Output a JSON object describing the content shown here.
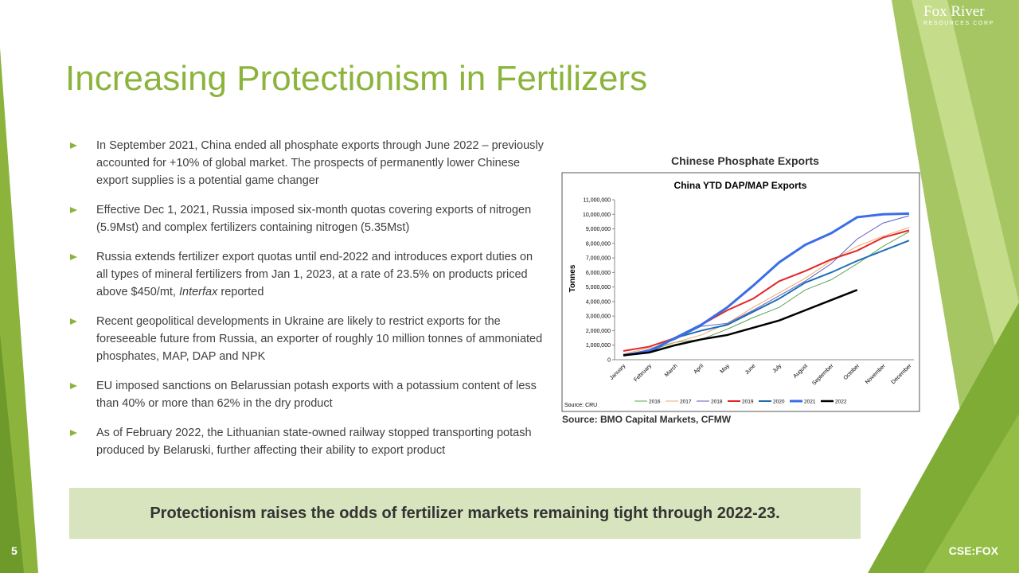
{
  "logo": {
    "name": "Fox River",
    "tagline": "RESOURCES CORP"
  },
  "header": {
    "title": "Increasing Protectionism in Fertilizers"
  },
  "bullets": [
    "In September 2021, China ended all phosphate exports through June 2022 – previously accounted for +10% of global market. The prospects of permanently lower Chinese export supplies is a potential game changer",
    "Effective Dec 1, 2021, Russia imposed six-month quotas covering exports of nitrogen (5.9Mst) and complex fertilizers containing nitrogen (5.35Mst)",
    {
      "parts": [
        "Russia extends fertilizer export quotas until end-2022 and introduces export duties on all types of mineral fertilizers from Jan 1, 2023, at a rate of 23.5% on products priced above $450/mt, ",
        "Interfax",
        " reported"
      ]
    },
    "Recent geopolitical developments in Ukraine are likely to restrict exports for the foreseeable future from Russia, an exporter of roughly 10 million tonnes of ammoniated phosphates, MAP, DAP and NPK",
    "EU imposed sanctions on Belarussian potash exports with a potassium content of less than 40% or more than 62% in the dry product",
    "As of February 2022, the Lithuanian state-owned railway stopped transporting potash produced by Belaruski, further affecting their ability to export product"
  ],
  "chart_caption": "Chinese Phosphate Exports",
  "chart_source": "Source: BMO Capital Markets, CFMW",
  "chart_data": {
    "type": "line",
    "title": "China YTD DAP/MAP Exports",
    "y_label": "Tonnes",
    "source": "Source: CRU",
    "categories": [
      "January",
      "February",
      "March",
      "April",
      "May",
      "June",
      "July",
      "August",
      "September",
      "October",
      "November",
      "December"
    ],
    "ylim": [
      0,
      11000000
    ],
    "yticks": [
      0,
      {
        "value": 1000000,
        "label": "1,000,000"
      },
      {
        "value": 2000000,
        "label": "2,000,000"
      },
      {
        "value": 3000000,
        "label": "3,000,000"
      },
      {
        "value": 4000000,
        "label": "4,000,000"
      },
      {
        "value": 5000000,
        "label": "5,000,000"
      },
      {
        "value": 6000000,
        "label": "6,000,000"
      },
      {
        "value": 7000000,
        "label": "7,000,000"
      },
      {
        "value": 8000000,
        "label": "8,000,000"
      },
      {
        "value": 9000000,
        "label": "9,000,000"
      },
      {
        "value": 10000000,
        "label": "10,000,000"
      },
      {
        "value": 11000000,
        "label": "11,000,000"
      }
    ],
    "legend": "bottom",
    "series": [
      {
        "name": "2016",
        "color": "#5fa35a",
        "width": 1,
        "values": [
          300000,
          600000,
          1200000,
          1400000,
          2100000,
          2900000,
          3600000,
          4800000,
          5500000,
          6600000,
          7800000,
          8800000
        ]
      },
      {
        "name": "2017",
        "color": "#f0a868",
        "width": 1,
        "values": [
          400000,
          800000,
          1200000,
          1700000,
          2500000,
          3600000,
          4600000,
          5600000,
          6800000,
          7800000,
          8500000,
          9100000
        ]
      },
      {
        "name": "2018",
        "color": "#5b5fc7",
        "width": 1,
        "values": [
          300000,
          700000,
          1400000,
          2300000,
          2500000,
          3400000,
          4400000,
          5400000,
          6600000,
          8300000,
          9400000,
          9900000
        ]
      },
      {
        "name": "2019",
        "color": "#e32626",
        "width": 2,
        "values": [
          600000,
          900000,
          1500000,
          2400000,
          3400000,
          4200000,
          5400000,
          6100000,
          6900000,
          7500000,
          8400000,
          8900000
        ]
      },
      {
        "name": "2020",
        "color": "#1f6fb5",
        "width": 2,
        "values": [
          300000,
          500000,
          1500000,
          2000000,
          2400000,
          3300000,
          4200000,
          5300000,
          6000000,
          6800000,
          7500000,
          8200000
        ]
      },
      {
        "name": "2021",
        "color": "#3a6ee8",
        "width": 3,
        "values": [
          300000,
          600000,
          1500000,
          2400000,
          3600000,
          5100000,
          6700000,
          7900000,
          8700000,
          9800000,
          10000000,
          10050000
        ]
      },
      {
        "name": "2022",
        "color": "#000000",
        "width": 2.5,
        "values": [
          300000,
          500000,
          1000000,
          1400000,
          1700000,
          2200000,
          2700000,
          3400000,
          4100000,
          4800000,
          null,
          null
        ]
      }
    ]
  },
  "callout": "Protectionism raises the odds of fertilizer markets remaining tight through 2022-23.",
  "footer": {
    "page": 5,
    "ticker": "CSE:FOX"
  }
}
